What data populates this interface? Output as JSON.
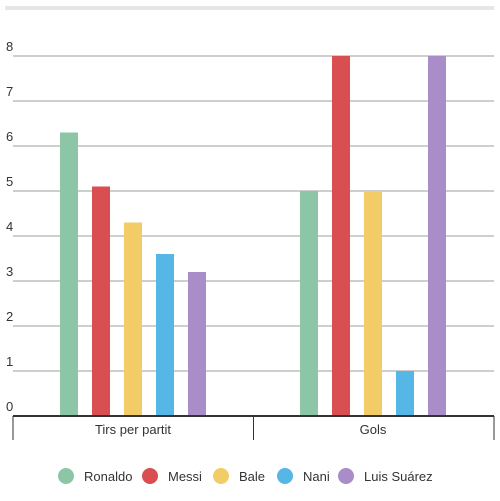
{
  "chart_data": {
    "type": "bar",
    "categories": [
      "Tirs per partit",
      "Gols"
    ],
    "series": [
      {
        "name": "Ronaldo",
        "values": [
          6.3,
          5
        ],
        "color": "#8dc6a6"
      },
      {
        "name": "Messi",
        "values": [
          5.1,
          8
        ],
        "color": "#d94f51"
      },
      {
        "name": "Bale",
        "values": [
          4.3,
          5
        ],
        "color": "#f2cd67"
      },
      {
        "name": "Nani",
        "values": [
          3.6,
          1
        ],
        "color": "#56b6e6"
      },
      {
        "name": "Luis Suárez",
        "values": [
          3.2,
          8
        ],
        "color": "#a88dc9"
      }
    ],
    "yticks": [
      "0",
      "1",
      "2",
      "3",
      "4",
      "5",
      "6",
      "7",
      "8"
    ],
    "ylim": [
      0,
      8
    ],
    "grid": true,
    "legend_position": "bottom",
    "title": "",
    "xlabel": "",
    "ylabel": ""
  },
  "colors": {
    "gridline": "#9e9e9e",
    "axis": "#333333",
    "top_bar": "#e6e6e6",
    "text": "#333333"
  }
}
